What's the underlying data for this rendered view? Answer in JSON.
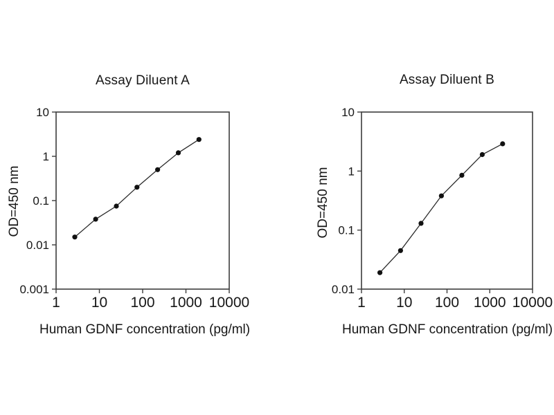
{
  "figure": {
    "background": "#ffffff",
    "text_color": "#161616",
    "axis_color": "#3c3c3c",
    "panel_count": 2
  },
  "chart_data": [
    {
      "type": "line",
      "title": "Assay Diluent A",
      "xlabel": "Human GDNF concentration (pg/ml)",
      "ylabel": "OD=450 nm",
      "x_scale": "log",
      "y_scale": "log",
      "x": [
        2.7,
        8.2,
        24.7,
        74,
        222,
        667,
        2000
      ],
      "y": [
        0.015,
        0.038,
        0.075,
        0.2,
        0.5,
        1.2,
        2.4
      ],
      "xlim": [
        1,
        10000
      ],
      "ylim": [
        0.001,
        10
      ],
      "x_ticks": [
        "1",
        "10",
        "100",
        "1000",
        "10000"
      ],
      "y_ticks": [
        "10",
        "1",
        "0.1",
        "0.01",
        "0.001"
      ],
      "grid": false,
      "legend": null,
      "marker": "filled-circle",
      "line_color": "#2a2a2a",
      "marker_color": "#111111"
    },
    {
      "type": "line",
      "title": "Assay Diluent B",
      "xlabel": "Human GDNF concentration (pg/ml)",
      "ylabel": "OD=450 nm",
      "x_scale": "log",
      "y_scale": "log",
      "x": [
        2.7,
        8.2,
        24.7,
        74,
        222,
        667,
        2000
      ],
      "y": [
        0.019,
        0.045,
        0.13,
        0.38,
        0.85,
        1.9,
        2.9
      ],
      "xlim": [
        1,
        10000
      ],
      "ylim": [
        0.01,
        10
      ],
      "x_ticks": [
        "1",
        "10",
        "100",
        "1000",
        "10000"
      ],
      "y_ticks": [
        "10",
        "1",
        "0.1",
        "0.01"
      ],
      "grid": false,
      "legend": null,
      "marker": "filled-circle",
      "line_color": "#2a2a2a",
      "marker_color": "#111111"
    }
  ]
}
